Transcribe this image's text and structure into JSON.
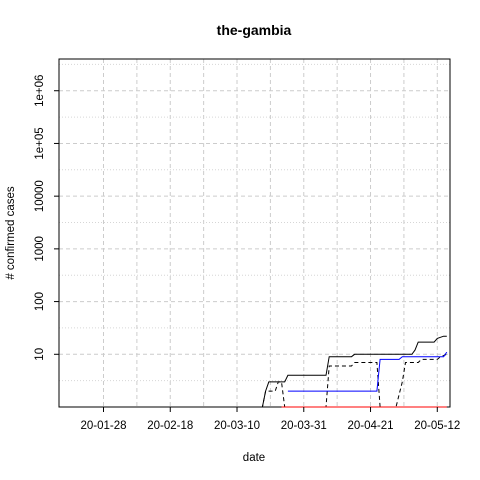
{
  "chart_data": {
    "type": "line",
    "title": "the-gambia",
    "xlabel": "date",
    "ylabel": "# confirmed cases",
    "y_scale": "log",
    "xlim": [
      "2020-01-14",
      "2020-05-16"
    ],
    "ylim": [
      1,
      4000000
    ],
    "grid": true,
    "legend": "none",
    "x_ticks": [
      "2020-01-28",
      "2020-02-18",
      "2020-03-10",
      "2020-03-31",
      "2020-04-21",
      "2020-05-12"
    ],
    "x_tick_labels": [
      "20-01-28",
      "20-02-18",
      "20-03-10",
      "20-03-31",
      "20-04-21",
      "20-05-12"
    ],
    "y_ticks": [
      10,
      100,
      1000,
      10000,
      100000,
      1000000
    ],
    "y_tick_labels": [
      "10",
      "100",
      "1000",
      "10000",
      "1e+05",
      "1e+06"
    ],
    "series": [
      {
        "color": "#000000",
        "dash": "solid",
        "points": [
          [
            "2020-03-13",
            1
          ],
          [
            "2020-03-18",
            1
          ],
          [
            "2020-03-19",
            2
          ],
          [
            "2020-03-20",
            3
          ],
          [
            "2020-03-25",
            3
          ],
          [
            "2020-03-26",
            4
          ],
          [
            "2020-04-07",
            4
          ],
          [
            "2020-04-08",
            9
          ],
          [
            "2020-04-15",
            9
          ],
          [
            "2020-04-16",
            10
          ],
          [
            "2020-05-04",
            10
          ],
          [
            "2020-05-05",
            12
          ],
          [
            "2020-05-06",
            17
          ],
          [
            "2020-05-11",
            17
          ],
          [
            "2020-05-12",
            20
          ],
          [
            "2020-05-14",
            22
          ],
          [
            "2020-05-15",
            22
          ]
        ]
      },
      {
        "color": "#000000",
        "dash": "dashed",
        "points": [
          [
            "2020-03-13",
            1
          ],
          [
            "2020-03-18",
            1
          ],
          [
            "2020-03-19",
            2
          ],
          [
            "2020-03-22",
            2
          ],
          [
            "2020-03-23",
            3
          ],
          [
            "2020-03-24",
            3
          ],
          [
            "2020-03-25",
            1
          ],
          [
            "2020-04-07",
            1
          ],
          [
            "2020-04-08",
            6
          ],
          [
            "2020-04-15",
            6
          ],
          [
            "2020-04-16",
            7
          ],
          [
            "2020-04-23",
            7
          ],
          [
            "2020-04-24",
            1
          ],
          [
            "2020-04-29",
            1
          ],
          [
            "2020-05-01",
            3
          ],
          [
            "2020-05-02",
            7
          ],
          [
            "2020-05-06",
            7
          ],
          [
            "2020-05-07",
            8
          ],
          [
            "2020-05-12",
            8
          ],
          [
            "2020-05-13",
            9
          ],
          [
            "2020-05-15",
            10
          ]
        ]
      },
      {
        "color": "#0000ff",
        "dash": "solid",
        "points": [
          [
            "2020-03-26",
            2
          ],
          [
            "2020-04-23",
            2
          ],
          [
            "2020-04-24",
            8
          ],
          [
            "2020-04-30",
            8
          ],
          [
            "2020-05-01",
            9
          ],
          [
            "2020-05-14",
            9
          ],
          [
            "2020-05-15",
            11
          ]
        ]
      },
      {
        "color": "#ff0000",
        "dash": "solid",
        "points": [
          [
            "2020-03-24",
            1
          ],
          [
            "2020-05-15",
            1
          ]
        ]
      }
    ]
  }
}
